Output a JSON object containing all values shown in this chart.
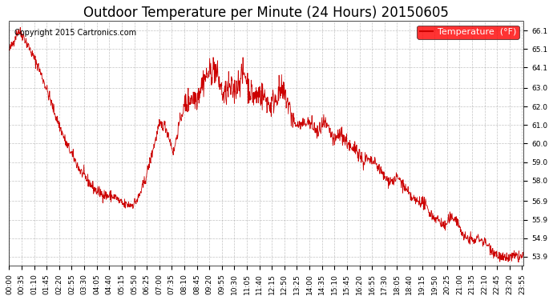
{
  "title": "Outdoor Temperature per Minute (24 Hours) 20150605",
  "legend_label": "Temperature  (°F)",
  "copyright_text": "Copyright 2015 Cartronics.com",
  "line_color": "#cc0000",
  "background_color": "#ffffff",
  "plot_bg_color": "#ffffff",
  "grid_color": "#aaaaaa",
  "ylim": [
    53.4,
    66.6
  ],
  "yticks": [
    53.9,
    54.9,
    55.9,
    56.9,
    58.0,
    59.0,
    60.0,
    61.0,
    62.0,
    63.0,
    64.1,
    65.1,
    66.1
  ],
  "total_minutes": 1440,
  "xtick_interval": 35,
  "title_fontsize": 12,
  "tick_fontsize": 6.5,
  "legend_fontsize": 8,
  "copyright_fontsize": 7
}
